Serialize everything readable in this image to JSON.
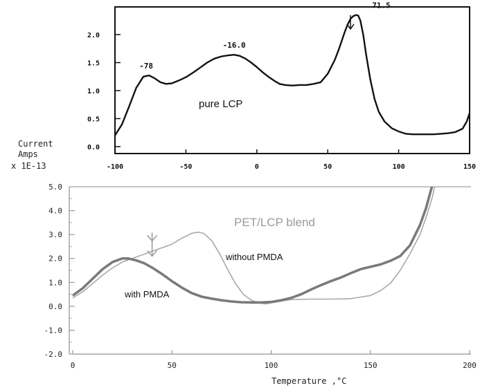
{
  "chart_data": [
    {
      "type": "line",
      "name_label": "pure LCP",
      "xlim": [
        -100,
        150
      ],
      "ylim": [
        0.0,
        2.4
      ],
      "x_ticks": [
        "-100",
        "-50",
        "0",
        "50",
        "100",
        "150"
      ],
      "y_ticks": [
        "0.0",
        "0.5",
        "1.0",
        "1.5",
        "2.0"
      ],
      "peak_labels": [
        {
          "text": "-78",
          "x": -78,
          "y": 1.27
        },
        {
          "text": "-16.0",
          "x": -16,
          "y": 1.64
        },
        {
          "text": "71.5",
          "x": 71.5,
          "y": 2.35
        }
      ],
      "arrow_at": {
        "x": 66,
        "y": 2.1
      },
      "series": [
        {
          "x": [
            -100,
            -95,
            -90,
            -85,
            -80,
            -76,
            -72,
            -68,
            -64,
            -60,
            -55,
            -50,
            -45,
            -40,
            -35,
            -30,
            -25,
            -20,
            -16,
            -12,
            -8,
            -4,
            0,
            4,
            8,
            12,
            16,
            20,
            25,
            30,
            35,
            40,
            45,
            50,
            55,
            58,
            60,
            62,
            64,
            66,
            68,
            70,
            71.5,
            73,
            75,
            77,
            80,
            83,
            86,
            90,
            95,
            100,
            105,
            110,
            115,
            120,
            125,
            130,
            135,
            140,
            145,
            148,
            150
          ],
          "y": [
            0.2,
            0.4,
            0.72,
            1.05,
            1.25,
            1.27,
            1.22,
            1.15,
            1.12,
            1.13,
            1.18,
            1.24,
            1.32,
            1.41,
            1.5,
            1.57,
            1.61,
            1.63,
            1.64,
            1.62,
            1.57,
            1.5,
            1.42,
            1.33,
            1.25,
            1.18,
            1.12,
            1.1,
            1.09,
            1.1,
            1.1,
            1.12,
            1.15,
            1.3,
            1.55,
            1.75,
            1.9,
            2.05,
            2.18,
            2.28,
            2.33,
            2.35,
            2.34,
            2.25,
            2.0,
            1.65,
            1.2,
            0.85,
            0.62,
            0.45,
            0.33,
            0.27,
            0.23,
            0.22,
            0.22,
            0.22,
            0.22,
            0.23,
            0.24,
            0.26,
            0.32,
            0.45,
            0.6
          ]
        }
      ]
    },
    {
      "type": "line",
      "title": "PET/LCP blend",
      "ylabel": [
        "Current",
        "Amps",
        "x 1E-13"
      ],
      "xlabel": "Temperature ,°C",
      "xlim": [
        0,
        200
      ],
      "ylim": [
        -2.0,
        5.0
      ],
      "x_ticks": [
        "0",
        "50",
        "100",
        "150",
        "200"
      ],
      "y_ticks": [
        "5.0",
        "4.0",
        "3.0",
        "2.0",
        "1.0",
        "0.0",
        "-1.0",
        "-2.0"
      ],
      "arrow_at": {
        "x": 40,
        "y": 2.1
      },
      "series": [
        {
          "name": "with PMDA",
          "x": [
            0,
            5,
            10,
            15,
            20,
            25,
            28,
            32,
            36,
            40,
            45,
            50,
            55,
            60,
            65,
            70,
            75,
            80,
            85,
            90,
            95,
            100,
            105,
            110,
            115,
            120,
            125,
            130,
            135,
            140,
            145,
            150,
            155,
            160,
            165,
            170,
            175,
            178,
            180,
            183
          ],
          "y": [
            0.45,
            0.75,
            1.15,
            1.55,
            1.85,
            2.0,
            2.0,
            1.92,
            1.8,
            1.62,
            1.35,
            1.05,
            0.78,
            0.55,
            0.4,
            0.32,
            0.25,
            0.2,
            0.17,
            0.16,
            0.16,
            0.18,
            0.25,
            0.35,
            0.5,
            0.7,
            0.88,
            1.05,
            1.2,
            1.38,
            1.55,
            1.65,
            1.75,
            1.9,
            2.1,
            2.55,
            3.4,
            4.1,
            4.7,
            5.6
          ]
        },
        {
          "name": "without PMDA",
          "x": [
            0,
            5,
            10,
            15,
            20,
            25,
            30,
            35,
            40,
            45,
            50,
            55,
            60,
            63,
            66,
            70,
            74,
            78,
            82,
            86,
            90,
            94,
            97,
            100,
            105,
            110,
            120,
            130,
            140,
            150,
            155,
            160,
            165,
            170,
            175,
            178,
            181,
            184
          ],
          "y": [
            0.35,
            0.6,
            0.95,
            1.3,
            1.6,
            1.85,
            2.0,
            2.15,
            2.3,
            2.45,
            2.6,
            2.85,
            3.05,
            3.1,
            3.05,
            2.75,
            2.2,
            1.55,
            0.95,
            0.5,
            0.25,
            0.14,
            0.1,
            0.14,
            0.22,
            0.28,
            0.3,
            0.3,
            0.32,
            0.45,
            0.65,
            0.95,
            1.5,
            2.2,
            3.0,
            3.7,
            4.5,
            5.6
          ]
        }
      ]
    }
  ]
}
